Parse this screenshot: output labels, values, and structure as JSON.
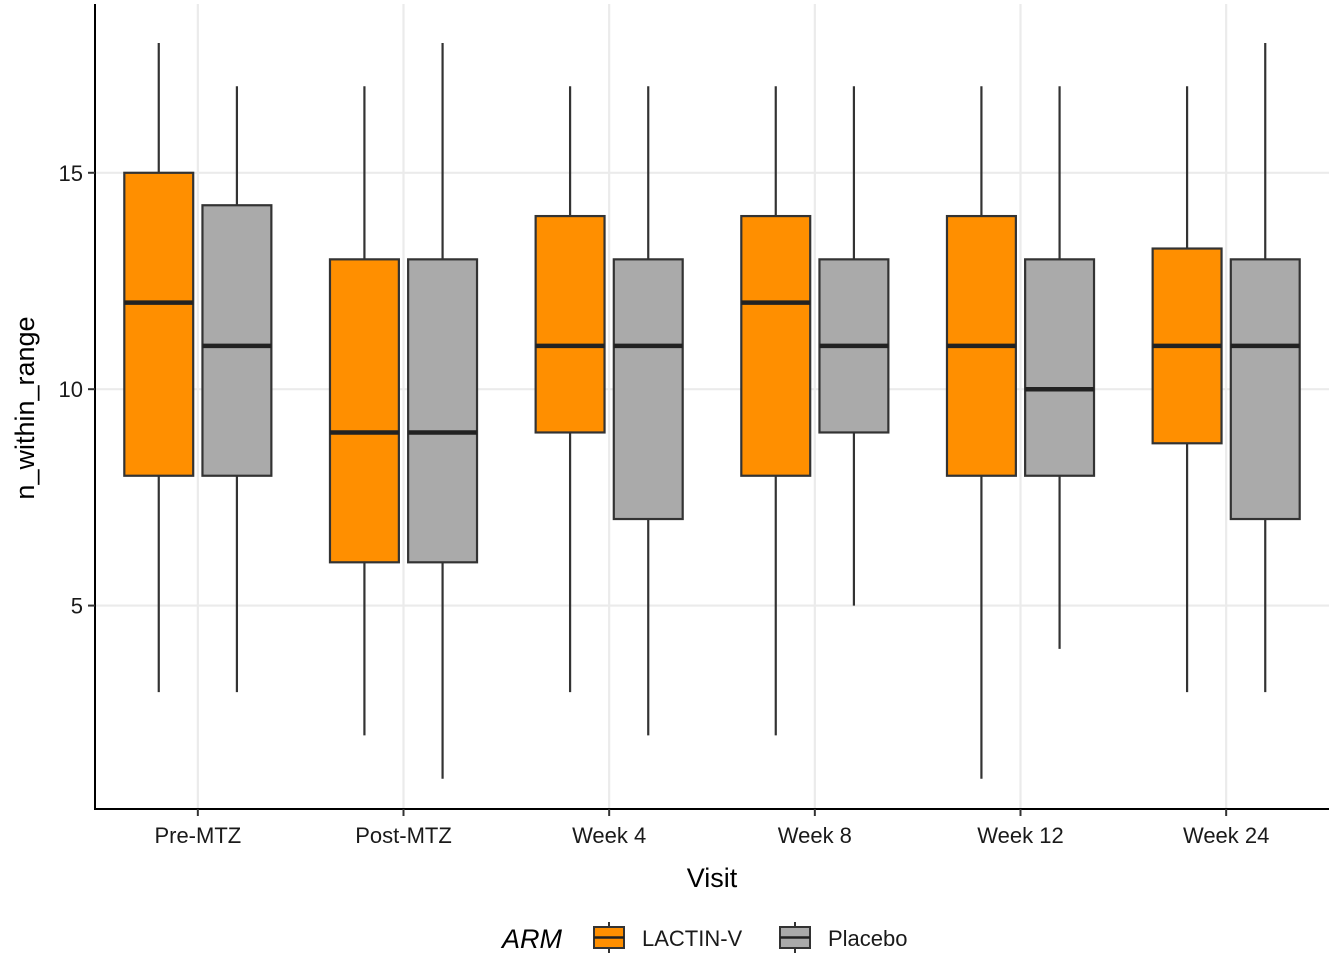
{
  "chart_data": {
    "type": "boxplot",
    "xlabel": "Visit",
    "ylabel": "n_within_range",
    "categories": [
      "Pre-MTZ",
      "Post-MTZ",
      "Week 4",
      "Week 8",
      "Week 12",
      "Week 24"
    ],
    "ylim": [
      0.3,
      18.9
    ],
    "yticks": [
      5,
      10,
      15
    ],
    "grid": true,
    "legend": {
      "title": "ARM",
      "position": "bottom"
    },
    "series": [
      {
        "name": "LACTIN-V",
        "color": "#FF8F00",
        "boxes": [
          {
            "min": 3,
            "q1": 8,
            "median": 12,
            "q3": 15,
            "max": 18
          },
          {
            "min": 2,
            "q1": 6,
            "median": 9,
            "q3": 13,
            "max": 17
          },
          {
            "min": 3,
            "q1": 9,
            "median": 11,
            "q3": 14,
            "max": 17
          },
          {
            "min": 2,
            "q1": 8,
            "median": 12,
            "q3": 14,
            "max": 17
          },
          {
            "min": 1,
            "q1": 8,
            "median": 11,
            "q3": 14,
            "max": 17
          },
          {
            "min": 3,
            "q1": 8.75,
            "median": 11,
            "q3": 13.25,
            "max": 17
          }
        ]
      },
      {
        "name": "Placebo",
        "color": "#AAAAAA",
        "boxes": [
          {
            "min": 3,
            "q1": 8,
            "median": 11,
            "q3": 14.25,
            "max": 17
          },
          {
            "min": 1,
            "q1": 6,
            "median": 9,
            "q3": 13,
            "max": 18
          },
          {
            "min": 2,
            "q1": 7,
            "median": 11,
            "q3": 13,
            "max": 17
          },
          {
            "min": 5,
            "q1": 9,
            "median": 11,
            "q3": 13,
            "max": 17
          },
          {
            "min": 4,
            "q1": 8,
            "median": 10,
            "q3": 13,
            "max": 17
          },
          {
            "min": 3,
            "q1": 7,
            "median": 11,
            "q3": 13,
            "max": 18
          }
        ]
      }
    ]
  }
}
